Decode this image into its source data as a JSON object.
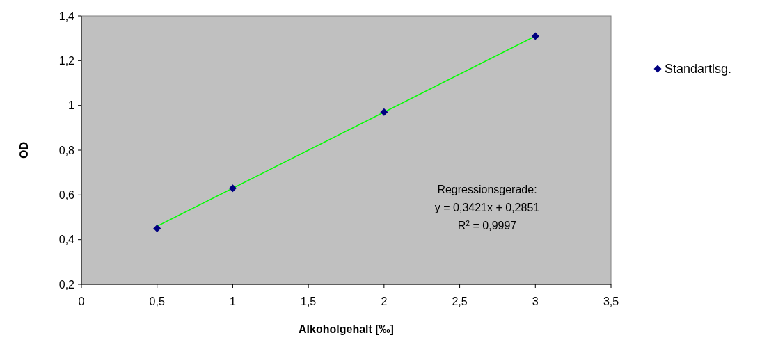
{
  "chart_data": {
    "type": "scatter",
    "xlabel": "Alkoholgehalt [‰]",
    "ylabel": "OD",
    "xlim": [
      0,
      3.5
    ],
    "xticks": [
      0,
      {
        "value": 0.5,
        "label": "0,5"
      },
      1,
      {
        "value": 1.5,
        "label": "1,5"
      },
      2,
      {
        "value": 2.5,
        "label": "2,5"
      },
      3,
      {
        "value": 3.5,
        "label": "3,5"
      }
    ],
    "ylim": [
      0.2,
      1.4
    ],
    "yticks": [
      {
        "value": 0.2,
        "label": "0,2"
      },
      {
        "value": 0.4,
        "label": "0,4"
      },
      {
        "value": 0.6,
        "label": "0,6"
      },
      {
        "value": 0.8,
        "label": "0,8"
      },
      1,
      {
        "value": 1.2,
        "label": "1,2"
      },
      {
        "value": 1.4,
        "label": "1,4"
      }
    ],
    "series": [
      {
        "name": "Standartlsg.",
        "color": "#000080",
        "x": [
          0.5,
          1,
          2,
          3
        ],
        "values": [
          0.45,
          0.63,
          0.97,
          1.31
        ]
      },
      {
        "type": "line",
        "marker": "none",
        "color": "#00ff00",
        "x": [
          0.5,
          3
        ],
        "values": [
          0.46,
          1.31
        ]
      }
    ],
    "marker": "diamond",
    "legend": "right",
    "annotations": [
      "Regressionsgerade:",
      "y = 0,3421x + 0,2851",
      "R$^{2}$ = 0,9997"
    ]
  }
}
